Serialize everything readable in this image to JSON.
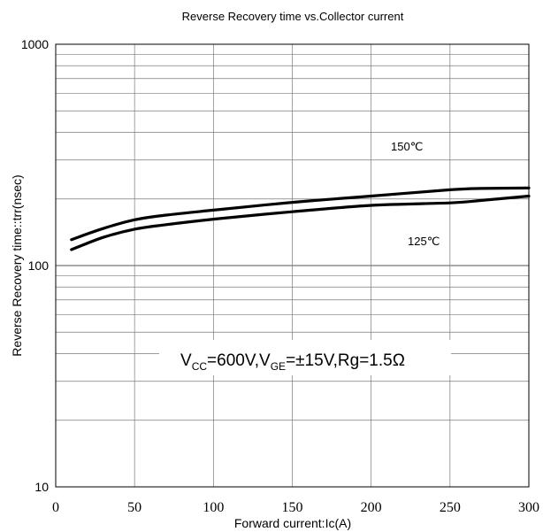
{
  "chart_data": {
    "type": "line",
    "title": "Reverse Recovery time vs.Collector current",
    "xlabel": "Forward current:Ic(A)",
    "ylabel": "Reverse Recovery time::trr(nsec)",
    "xlim": [
      0,
      300
    ],
    "ylim": [
      10,
      1000
    ],
    "yscale": "log",
    "x_ticks": [
      0,
      50,
      100,
      150,
      200,
      250,
      300
    ],
    "x_tick_labels": [
      "0",
      "50",
      "100",
      "150",
      "200",
      "250",
      "300"
    ],
    "y_ticks": [
      10,
      100,
      1000
    ],
    "y_tick_labels": [
      "10",
      "100",
      "1000"
    ],
    "grid": true,
    "series": [
      {
        "name": "150℃",
        "x": [
          10,
          30,
          50,
          70,
          100,
          150,
          200,
          250,
          270,
          300
        ],
        "y": [
          131,
          147,
          161,
          169,
          178,
          193,
          206,
          220,
          223,
          224
        ]
      },
      {
        "name": "125℃",
        "x": [
          10,
          30,
          50,
          70,
          100,
          150,
          200,
          250,
          270,
          300
        ],
        "y": [
          118,
          134,
          146,
          153,
          162,
          175,
          187,
          192,
          197,
          206
        ]
      }
    ],
    "annotation": {
      "v1": "V",
      "v1_sub": "CC",
      "v1_rest": "=600V,V",
      "v2_sub": "GE",
      "v2_rest": "=±15V,Rg=1.5Ω"
    }
  }
}
